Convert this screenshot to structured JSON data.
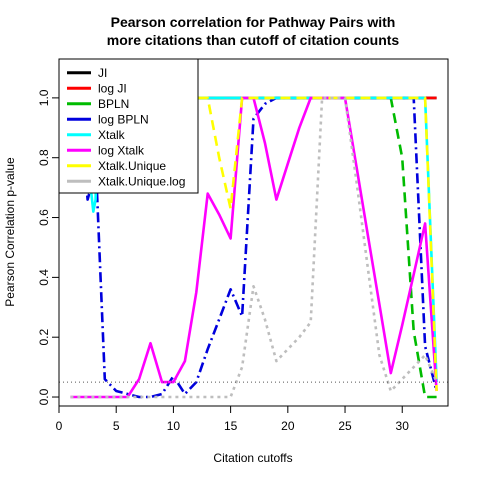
{
  "chart_data": {
    "type": "line",
    "title": [
      "Pearson correlation for Pathway Pairs with",
      "more citations than cutoff of citation counts"
    ],
    "xlabel": "Citation cutoffs",
    "ylabel": "Pearson Correlation p-value",
    "xlim": [
      0,
      34
    ],
    "ylim": [
      -0.03,
      1.13
    ],
    "xticks": [
      0,
      5,
      10,
      15,
      20,
      25,
      30
    ],
    "yticks": [
      0.0,
      0.2,
      0.4,
      0.6,
      0.8,
      1.0
    ],
    "ytick_labels": [
      "0.0",
      "0.2",
      "0.4",
      "0.6",
      "0.8",
      "1.0"
    ],
    "reference_line": {
      "y": 0.05,
      "style": "dotted",
      "color": "#555555"
    },
    "legend_position": "top-left",
    "series": [
      {
        "name": "JI",
        "color": "#000000",
        "dash": "solid",
        "x": [
          1,
          2,
          3,
          4,
          5,
          6,
          7,
          8,
          9,
          10,
          11,
          12,
          13,
          14,
          15,
          16,
          17,
          18,
          19,
          20,
          21,
          22,
          23,
          24,
          25,
          26,
          27,
          28,
          29,
          30,
          31,
          32,
          33
        ],
        "y": [
          1,
          1,
          1,
          1,
          1,
          1,
          1,
          1,
          1,
          1,
          1,
          1,
          1,
          1,
          1,
          1,
          1,
          1,
          1,
          1,
          1,
          1,
          1,
          1,
          1,
          1,
          1,
          1,
          1,
          1,
          1,
          1,
          1
        ]
      },
      {
        "name": "log JI",
        "color": "#ff0000",
        "dash": "solid",
        "x": [
          1,
          2,
          3,
          4,
          5,
          6,
          7,
          8,
          9,
          10,
          11,
          12,
          13,
          14,
          15,
          16,
          17,
          18,
          19,
          20,
          21,
          22,
          23,
          24,
          25,
          26,
          27,
          28,
          29,
          30,
          31,
          32,
          33
        ],
        "y": [
          1,
          1,
          1,
          1,
          1,
          1,
          1,
          1,
          1,
          1,
          1,
          1,
          1,
          1,
          1,
          1,
          1,
          1,
          1,
          1,
          1,
          1,
          1,
          1,
          1,
          1,
          1,
          1,
          1,
          1,
          1,
          1,
          1
        ]
      },
      {
        "name": "BPLN",
        "color": "#00bb00",
        "dash": "dash",
        "x": [
          1,
          2,
          3,
          4,
          5,
          6,
          7,
          8,
          9,
          10,
          11,
          12,
          13,
          14,
          15,
          16,
          17,
          18,
          19,
          20,
          21,
          22,
          23,
          24,
          25,
          26,
          27,
          28,
          29,
          30,
          31,
          32,
          33
        ],
        "y": [
          1,
          1,
          1,
          1,
          1,
          1,
          1,
          1,
          1,
          1,
          1,
          1,
          1,
          1,
          1,
          1,
          1,
          1,
          1,
          1,
          1,
          1,
          1,
          1,
          1,
          1,
          1,
          1,
          1,
          0.8,
          0.22,
          0.0,
          0.0
        ]
      },
      {
        "name": "log BPLN",
        "color": "#0000dd",
        "dash": "dashdot",
        "x": [
          1,
          2,
          2.5,
          3,
          3.3,
          4,
          5,
          6,
          7,
          8,
          9,
          10,
          11,
          12,
          13,
          14,
          15,
          16,
          16.5,
          17,
          18,
          19,
          20,
          21,
          22,
          23,
          24,
          25,
          26,
          27,
          28,
          29,
          30,
          31,
          32,
          33
        ],
        "y": [
          1,
          0.9,
          0.66,
          0.73,
          0.7,
          0.06,
          0.02,
          0.01,
          0.0,
          0.0,
          0.01,
          0.07,
          0.01,
          0.05,
          0.16,
          0.26,
          0.36,
          0.27,
          0.6,
          0.93,
          0.98,
          1,
          1,
          1,
          1,
          1,
          1,
          1,
          1,
          1,
          1,
          1,
          1,
          1,
          0.17,
          0.02
        ]
      },
      {
        "name": "Xtalk",
        "color": "#00ffff",
        "dash": "solid",
        "x": [
          1,
          2,
          2.5,
          3,
          3.2,
          3.4,
          4,
          5,
          6,
          7,
          8,
          9,
          10,
          11,
          12,
          13,
          14,
          15,
          16,
          17,
          18,
          19,
          20,
          21,
          22,
          23,
          24,
          25,
          26,
          27,
          28,
          29,
          30,
          31,
          32,
          33
        ],
        "y": [
          1,
          1,
          0.8,
          0.62,
          0.66,
          1,
          1,
          1,
          1,
          1,
          1,
          1,
          1,
          1,
          1,
          1,
          1,
          1,
          1,
          1,
          1,
          1,
          1,
          1,
          1,
          1,
          1,
          1,
          1,
          1,
          1,
          1,
          1,
          1,
          1,
          0.05
        ]
      },
      {
        "name": "log Xtalk",
        "color": "#ff00ff",
        "dash": "solid",
        "x": [
          1,
          2,
          3,
          4,
          5,
          6,
          7,
          8,
          9,
          10,
          11,
          12,
          13,
          14,
          15,
          16,
          17,
          18,
          19,
          20,
          21,
          22,
          23,
          24,
          25,
          26,
          27,
          28,
          29,
          30,
          31,
          32,
          33
        ],
        "y": [
          0.0,
          0.0,
          0.0,
          0.0,
          0.0,
          0.0,
          0.06,
          0.18,
          0.05,
          0.05,
          0.12,
          0.35,
          0.68,
          0.61,
          0.53,
          1,
          1,
          0.85,
          0.66,
          0.78,
          0.9,
          1,
          1,
          1,
          1,
          0.77,
          0.54,
          0.31,
          0.08,
          0.24,
          0.41,
          0.58,
          0.02
        ]
      },
      {
        "name": "Xtalk.Unique",
        "color": "#ffff00",
        "dash": "dash",
        "x": [
          1,
          2,
          3,
          4,
          5,
          6,
          7,
          8,
          9,
          10,
          11,
          12,
          13,
          14,
          15,
          16,
          17,
          18,
          19,
          20,
          21,
          22,
          23,
          24,
          25,
          26,
          27,
          28,
          29,
          30,
          31,
          32,
          33
        ],
        "y": [
          1,
          1,
          1,
          1,
          1,
          1,
          1,
          1,
          1,
          1,
          1,
          1,
          1,
          0.8,
          0.63,
          1,
          1,
          1,
          1,
          1,
          1,
          1,
          1,
          1,
          1,
          1,
          1,
          1,
          1,
          1,
          1,
          1,
          0.02
        ]
      },
      {
        "name": "Xtalk.Unique.log",
        "color": "#bebebe",
        "dash": "dot",
        "x": [
          1,
          2,
          3,
          4,
          5,
          6,
          7,
          8,
          9,
          10,
          11,
          12,
          13,
          14,
          15,
          16,
          17,
          18,
          19,
          20,
          21,
          22,
          23,
          24,
          25,
          26,
          27,
          28,
          29,
          30,
          31,
          32,
          33
        ],
        "y": [
          0.0,
          0.0,
          0.0,
          0.0,
          0.0,
          0.0,
          0.0,
          0.0,
          0.0,
          0.0,
          0.0,
          0.0,
          0.0,
          0.0,
          0.0,
          0.1,
          0.37,
          0.26,
          0.12,
          0.16,
          0.2,
          0.25,
          1,
          1,
          1,
          0.72,
          0.43,
          0.14,
          0.02,
          0.06,
          0.1,
          0.14,
          0.05
        ]
      }
    ]
  }
}
